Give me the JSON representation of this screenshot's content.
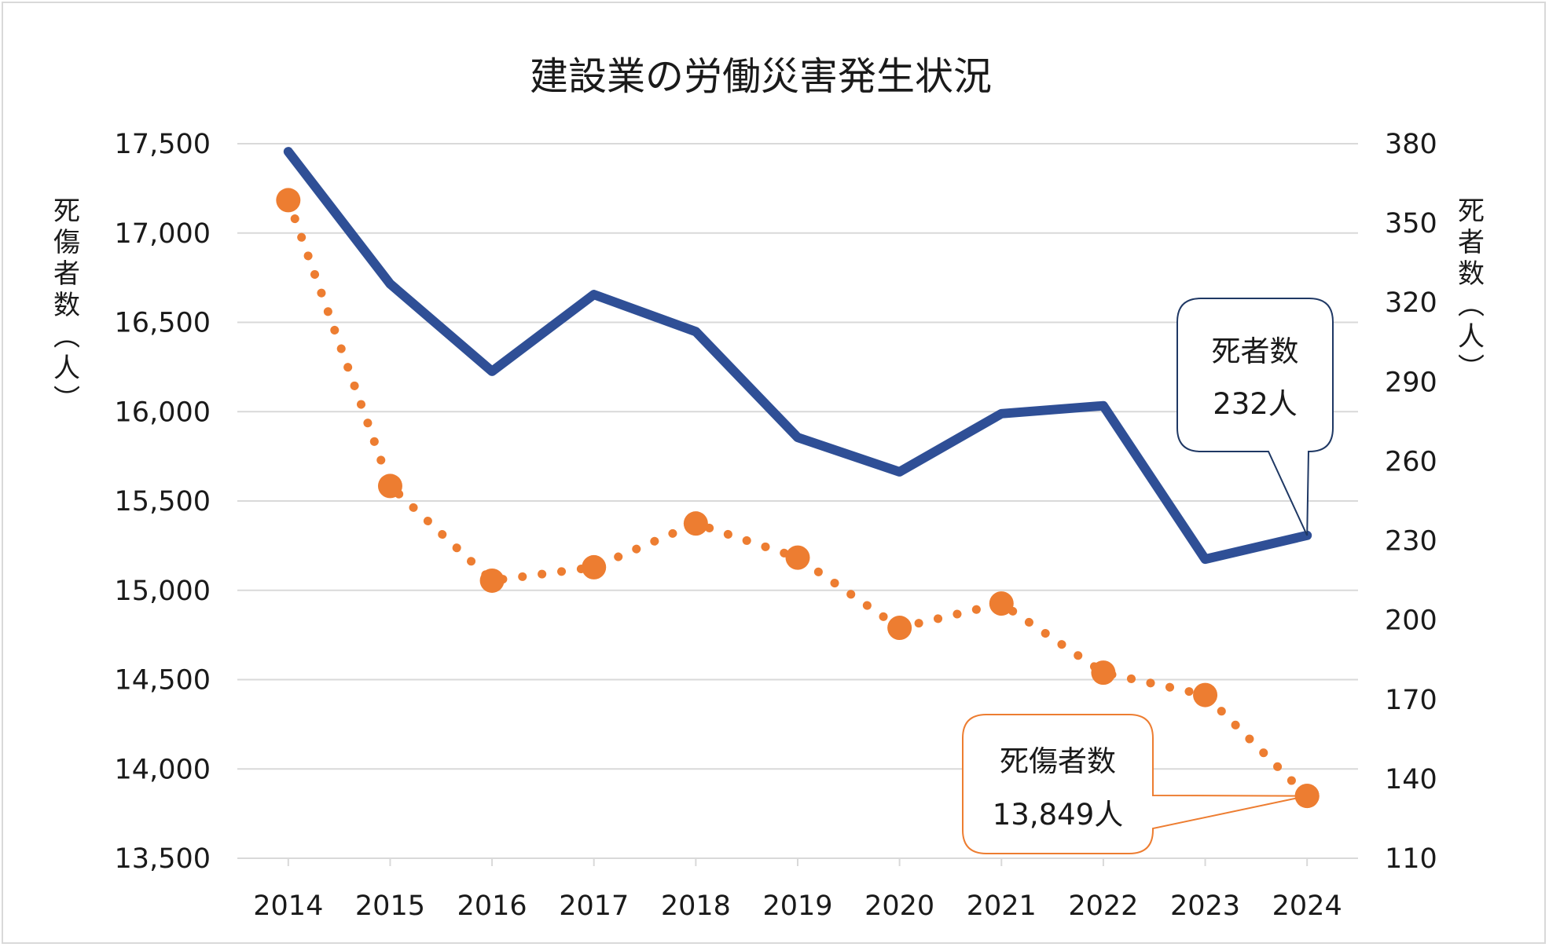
{
  "chart_data": {
    "type": "line",
    "title": "建設業の労働災害発生状況",
    "x": [
      "2014",
      "2015",
      "2016",
      "2017",
      "2018",
      "2019",
      "2020",
      "2021",
      "2022",
      "2023",
      "2024"
    ],
    "left_axis": {
      "label": "死傷者数(人)",
      "ylim": [
        13500,
        17500
      ],
      "ticks": [
        "13,500",
        "14,000",
        "14,500",
        "15,000",
        "15,500",
        "16,000",
        "16,500",
        "17,000",
        "17,500"
      ]
    },
    "right_axis": {
      "label": "死者数(人)",
      "ylim": [
        110,
        380
      ],
      "ticks": [
        "110",
        "140",
        "170",
        "200",
        "230",
        "260",
        "290",
        "320",
        "350",
        "380"
      ]
    },
    "series": [
      {
        "name": "死者数",
        "axis": "right",
        "style": "solid",
        "color": "#2f4f96",
        "values": [
          377,
          327,
          294,
          323,
          309,
          269,
          256,
          278,
          281,
          223,
          232
        ]
      },
      {
        "name": "死傷者数",
        "axis": "left",
        "style": "dotted",
        "color": "#ed7d31",
        "values": [
          17184,
          15584,
          15054,
          15129,
          15374,
          15183,
          14790,
          14926,
          14539,
          14414,
          13849
        ]
      }
    ],
    "callouts": [
      {
        "series": "死者数",
        "line1": "死者数",
        "line2": "232人"
      },
      {
        "series": "死傷者数",
        "line1": "死傷者数",
        "line2": "13,849人"
      }
    ],
    "grid": true,
    "legend": "none"
  }
}
